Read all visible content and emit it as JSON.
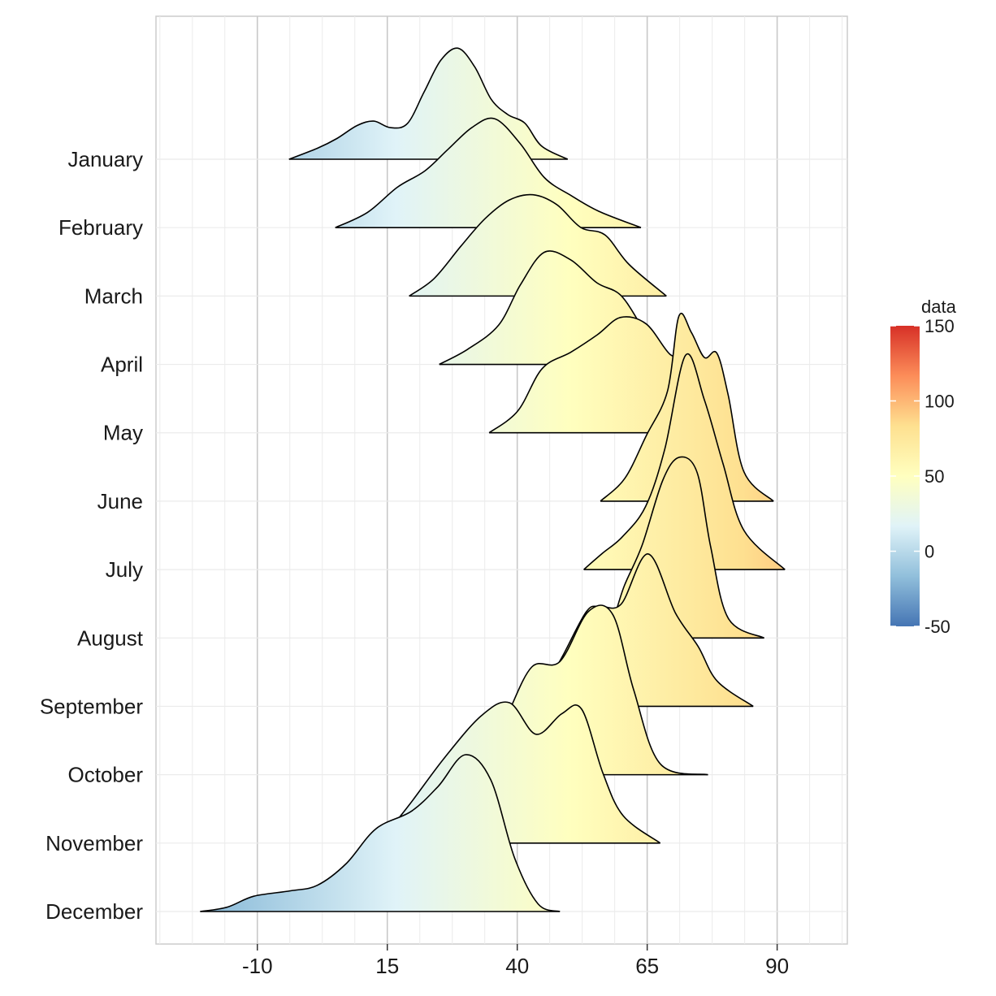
{
  "chart_data": {
    "type": "ridgeline",
    "categories": [
      "January",
      "February",
      "March",
      "April",
      "May",
      "June",
      "July",
      "August",
      "September",
      "October",
      "November",
      "December"
    ],
    "x_ticks": [
      -10,
      15,
      40,
      65,
      90
    ],
    "xlim": [
      -29.5,
      103.5
    ],
    "grid": true,
    "legend": {
      "title": "data",
      "placement": "right",
      "type": "colorbar",
      "range": [
        -50,
        150
      ],
      "ticks": [
        150,
        100,
        50,
        0,
        -50
      ],
      "colors": [
        "#4575b4",
        "#91bfdb",
        "#e0f3f8",
        "#ffffbf",
        "#fee090",
        "#fc8d59",
        "#d73027"
      ]
    },
    "series": [
      {
        "name": "January",
        "points": [
          [
            -3.9,
            0
          ],
          [
            1.5,
            0.1
          ],
          [
            5.3,
            0.19
          ],
          [
            9.2,
            0.31
          ],
          [
            12.4,
            0.35
          ],
          [
            15.6,
            0.29
          ],
          [
            18.9,
            0.33
          ],
          [
            22.1,
            0.62
          ],
          [
            25.3,
            0.91
          ],
          [
            28.6,
            1.02
          ],
          [
            31.8,
            0.85
          ],
          [
            35.0,
            0.55
          ],
          [
            38.2,
            0.41
          ],
          [
            41.5,
            0.33
          ],
          [
            44.7,
            0.12
          ],
          [
            49.7,
            0
          ]
        ]
      },
      {
        "name": "February",
        "points": [
          [
            5.0,
            0
          ],
          [
            11.2,
            0.14
          ],
          [
            16.9,
            0.37
          ],
          [
            22.2,
            0.52
          ],
          [
            26.7,
            0.72
          ],
          [
            31.3,
            0.92
          ],
          [
            35.7,
            1.0
          ],
          [
            40.6,
            0.77
          ],
          [
            45.2,
            0.46
          ],
          [
            50.5,
            0.29
          ],
          [
            55.7,
            0.15
          ],
          [
            63.8,
            0
          ]
        ]
      },
      {
        "name": "March",
        "points": [
          [
            19.2,
            0
          ],
          [
            24.0,
            0.16
          ],
          [
            29.2,
            0.46
          ],
          [
            33.8,
            0.71
          ],
          [
            38.4,
            0.88
          ],
          [
            43.0,
            0.93
          ],
          [
            47.6,
            0.84
          ],
          [
            52.2,
            0.63
          ],
          [
            56.9,
            0.56
          ],
          [
            61.5,
            0.29
          ],
          [
            68.7,
            0
          ]
        ]
      },
      {
        "name": "April",
        "points": [
          [
            25.0,
            0
          ],
          [
            30.5,
            0.14
          ],
          [
            36.4,
            0.36
          ],
          [
            40.6,
            0.73
          ],
          [
            45.2,
            1.03
          ],
          [
            50.3,
            0.96
          ],
          [
            55.3,
            0.75
          ],
          [
            60.0,
            0.63
          ],
          [
            64.5,
            0.3
          ],
          [
            67.5,
            0.07
          ],
          [
            70,
            0
          ]
        ]
      },
      {
        "name": "May",
        "points": [
          [
            34.6,
            0
          ],
          [
            40.1,
            0.2
          ],
          [
            44.8,
            0.59
          ],
          [
            50.3,
            0.74
          ],
          [
            55.4,
            0.9
          ],
          [
            59.9,
            1.06
          ],
          [
            64.8,
            1.0
          ],
          [
            69.4,
            0.72
          ],
          [
            71.9,
            0.73
          ],
          [
            75.0,
            0.69
          ],
          [
            78.0,
            0
          ]
        ]
      },
      {
        "name": "June",
        "points": [
          [
            56.0,
            0
          ],
          [
            60.7,
            0.21
          ],
          [
            64.8,
            0.6
          ],
          [
            68.9,
            1.01
          ],
          [
            71.1,
            1.7
          ],
          [
            73.5,
            1.55
          ],
          [
            76.0,
            1.32
          ],
          [
            78.4,
            1.36
          ],
          [
            80.6,
            0.97
          ],
          [
            83.6,
            0.27
          ],
          [
            89.3,
            0
          ]
        ]
      },
      {
        "name": "July",
        "points": [
          [
            52.8,
            0
          ],
          [
            56.4,
            0.15
          ],
          [
            60.2,
            0.3
          ],
          [
            64.7,
            0.58
          ],
          [
            68.4,
            1.11
          ],
          [
            72.4,
            1.97
          ],
          [
            76.0,
            1.56
          ],
          [
            79.6,
            0.97
          ],
          [
            83.6,
            0.36
          ],
          [
            91.5,
            0
          ]
        ]
      },
      {
        "name": "August",
        "points": [
          [
            55.6,
            0
          ],
          [
            58.3,
            0.16
          ],
          [
            60.6,
            0.48
          ],
          [
            64.0,
            0.85
          ],
          [
            68.0,
            1.45
          ],
          [
            71.2,
            1.66
          ],
          [
            74.6,
            1.52
          ],
          [
            77.2,
            0.84
          ],
          [
            80.6,
            0.18
          ],
          [
            87.5,
            0
          ]
        ]
      },
      {
        "name": "September",
        "points": [
          [
            43.4,
            0
          ],
          [
            48.7,
            0.46
          ],
          [
            53.3,
            0.87
          ],
          [
            55.9,
            0.92
          ],
          [
            60.0,
            0.94
          ],
          [
            65.2,
            1.4
          ],
          [
            70.4,
            0.86
          ],
          [
            74.8,
            0.55
          ],
          [
            78.5,
            0.23
          ],
          [
            85.4,
            0
          ]
        ]
      },
      {
        "name": "October",
        "points": [
          [
            27.2,
            0
          ],
          [
            33.9,
            0.14
          ],
          [
            38.0,
            0.54
          ],
          [
            42.8,
            0.99
          ],
          [
            48.2,
            1.04
          ],
          [
            53.7,
            1.5
          ],
          [
            58.4,
            1.47
          ],
          [
            62.4,
            0.78
          ],
          [
            67.5,
            0.1
          ],
          [
            76.7,
            0
          ]
        ]
      },
      {
        "name": "November",
        "points": [
          [
            13.3,
            0
          ],
          [
            19.2,
            0.35
          ],
          [
            26.1,
            0.79
          ],
          [
            33.1,
            1.17
          ],
          [
            38.5,
            1.29
          ],
          [
            43.6,
            1.0
          ],
          [
            48.6,
            1.19
          ],
          [
            52.4,
            1.23
          ],
          [
            56.5,
            0.64
          ],
          [
            60.4,
            0.25
          ],
          [
            67.5,
            0
          ]
        ]
      },
      {
        "name": "December",
        "points": [
          [
            -21.0,
            0
          ],
          [
            -15.8,
            0.04
          ],
          [
            -10.7,
            0.14
          ],
          [
            -3.6,
            0.19
          ],
          [
            1.5,
            0.24
          ],
          [
            7.1,
            0.44
          ],
          [
            12.8,
            0.76
          ],
          [
            19.6,
            0.92
          ],
          [
            24.8,
            1.15
          ],
          [
            30.0,
            1.44
          ],
          [
            34.9,
            1.21
          ],
          [
            39.5,
            0.49
          ],
          [
            44.0,
            0.07
          ],
          [
            48.2,
            0
          ]
        ]
      }
    ]
  }
}
